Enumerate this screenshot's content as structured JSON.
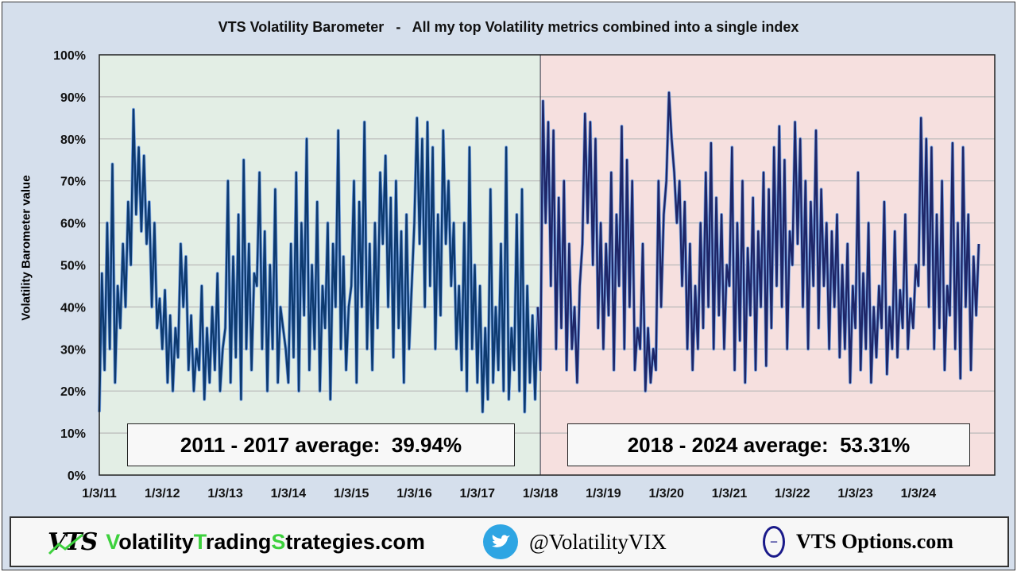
{
  "chart_data": {
    "type": "line",
    "title": "VTS Volatility Barometer   -   All my top Volatility metrics combined into a single index",
    "ylabel": "Volatility Barometer value",
    "xlabel": "",
    "ylim": [
      0,
      100
    ],
    "y_ticks": [
      "0%",
      "10%",
      "20%",
      "30%",
      "40%",
      "50%",
      "60%",
      "70%",
      "80%",
      "90%",
      "100%"
    ],
    "x_ticks": [
      "1/3/11",
      "1/3/12",
      "1/3/13",
      "1/3/14",
      "1/3/15",
      "1/3/16",
      "1/3/17",
      "1/3/18",
      "1/3/19",
      "1/3/20",
      "1/3/21",
      "1/3/22",
      "1/3/23",
      "1/3/24"
    ],
    "grid": "horizontal",
    "regions": [
      {
        "label": "2011 - 2017 average:  39.94%",
        "from": "1/3/11",
        "to": "1/3/18",
        "color": "#e3eee5",
        "line_color": "#0d3a70"
      },
      {
        "label": "2018 - 2024 average:  53.31%",
        "from": "1/3/18",
        "to": "end",
        "color": "#f6e0df",
        "line_color": "#1e2668"
      }
    ],
    "series_by_year": [
      {
        "year": 2011,
        "values": [
          15,
          48,
          25,
          60,
          30,
          74,
          22,
          45,
          35,
          55,
          40,
          65,
          50,
          87,
          62,
          78,
          58,
          76,
          55,
          65,
          40,
          60,
          35,
          42
        ]
      },
      {
        "year": 2012,
        "values": [
          30,
          44,
          22,
          38,
          20,
          35,
          28,
          55,
          40,
          52,
          25,
          38,
          20,
          30,
          25,
          45,
          18,
          35,
          22,
          40,
          25,
          48,
          20,
          30
        ]
      },
      {
        "year": 2013,
        "values": [
          35,
          70,
          22,
          52,
          28,
          62,
          18,
          75,
          30,
          55,
          25,
          48,
          45,
          72,
          30,
          58,
          20,
          50,
          30,
          68,
          22,
          40,
          35,
          30
        ]
      },
      {
        "year": 2014,
        "values": [
          22,
          55,
          28,
          72,
          20,
          60,
          38,
          80,
          25,
          50,
          30,
          65,
          20,
          45,
          35,
          60,
          18,
          55,
          40,
          82,
          30,
          52,
          25,
          40
        ]
      },
      {
        "year": 2015,
        "values": [
          45,
          70,
          22,
          65,
          40,
          84,
          30,
          55,
          25,
          60,
          35,
          72,
          55,
          76,
          40,
          66,
          28,
          70,
          35,
          58,
          22,
          62,
          30,
          45
        ]
      },
      {
        "year": 2016,
        "values": [
          60,
          85,
          55,
          80,
          40,
          84,
          45,
          78,
          30,
          62,
          38,
          82,
          55,
          70,
          45,
          60,
          30,
          45,
          25,
          60,
          20,
          78,
          30,
          50
        ]
      },
      {
        "year": 2017,
        "values": [
          22,
          45,
          15,
          35,
          18,
          68,
          22,
          40,
          25,
          55,
          20,
          78,
          18,
          35,
          25,
          62,
          20,
          68,
          15,
          45,
          22,
          38,
          18,
          40
        ]
      },
      {
        "year": 2018,
        "values": [
          25,
          89,
          60,
          84,
          45,
          82,
          30,
          66,
          35,
          70,
          25,
          55,
          30,
          40,
          22,
          45,
          55,
          86,
          60,
          84,
          50,
          80,
          35,
          60
        ]
      },
      {
        "year": 2019,
        "values": [
          30,
          55,
          38,
          72,
          25,
          62,
          45,
          83,
          30,
          75,
          40,
          70,
          25,
          35,
          30,
          55,
          20,
          35,
          22,
          30,
          25,
          70,
          40,
          62
        ]
      },
      {
        "year": 2020,
        "values": [
          70,
          91,
          80,
          72,
          60,
          70,
          45,
          65,
          30,
          55,
          25,
          45,
          30,
          60,
          35,
          72,
          40,
          79,
          30,
          66,
          38,
          62,
          30,
          50
        ]
      },
      {
        "year": 2021,
        "values": [
          45,
          78,
          25,
          60,
          32,
          70,
          22,
          54,
          38,
          66,
          25,
          58,
          40,
          72,
          26,
          68,
          35,
          78,
          45,
          83,
          40,
          75,
          30,
          58
        ]
      },
      {
        "year": 2022,
        "values": [
          50,
          84,
          55,
          80,
          40,
          70,
          30,
          65,
          45,
          82,
          35,
          68,
          45,
          60,
          30,
          58,
          40,
          62,
          28,
          50,
          30,
          55,
          22,
          45
        ]
      },
      {
        "year": 2023,
        "values": [
          35,
          72,
          25,
          48,
          30,
          60,
          22,
          40,
          28,
          45,
          35,
          65,
          24,
          40,
          30,
          58,
          28,
          44,
          35,
          62,
          30,
          42,
          35,
          50
        ]
      },
      {
        "year": 2024,
        "values": [
          45,
          85,
          50,
          80,
          40,
          78,
          30,
          62,
          35,
          70,
          25,
          45,
          38,
          79,
          30,
          60,
          23,
          78,
          40,
          62,
          25,
          52,
          38,
          55
        ]
      }
    ]
  },
  "footer": {
    "logo_text": "VTS",
    "site_parts": [
      "V",
      "olatility",
      "T",
      "rading",
      "S",
      "trategies.com"
    ],
    "twitter_handle": "@VolatilityVIX",
    "options_site": "VTS Options.com",
    "icons": [
      "vts-logo-icon",
      "twitter-bird-icon",
      "theta-icon"
    ]
  }
}
